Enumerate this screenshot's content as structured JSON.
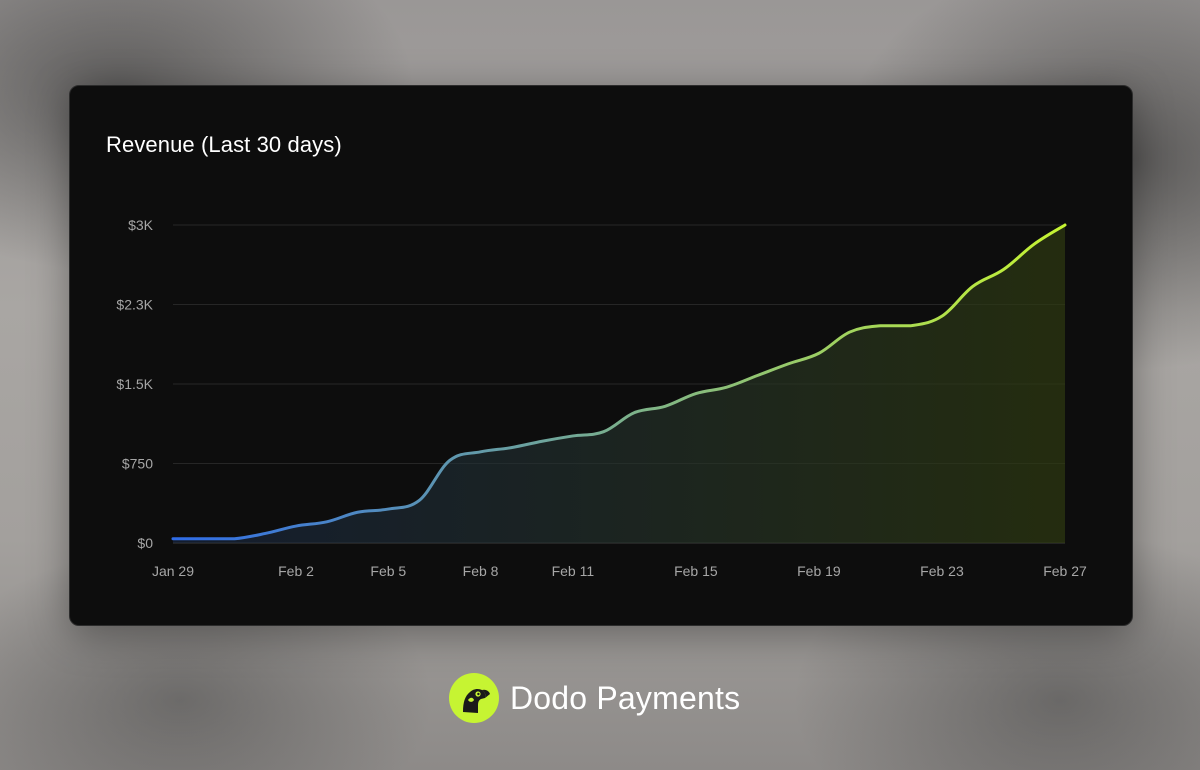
{
  "card": {
    "title": "Revenue (Last 30 days)"
  },
  "brand": {
    "name": "Dodo Payments",
    "logo_icon": "dodo-bird-icon",
    "logo_color": "#c6f432"
  },
  "chart_data": {
    "type": "area",
    "title": "Revenue (Last 30 days)",
    "xlabel": "",
    "ylabel": "",
    "x_ticks": [
      "Jan 29",
      "Feb 2",
      "Feb 5",
      "Feb 8",
      "Feb 11",
      "Feb 15",
      "Feb 19",
      "Feb 23",
      "Feb 27"
    ],
    "y_ticks": [
      "$0",
      "$750",
      "$1.5K",
      "$2.3K",
      "$3K"
    ],
    "ylim": [
      0,
      3000
    ],
    "grid": true,
    "legend": "none",
    "line_gradient": [
      "#2f6ce8",
      "#c6f432"
    ],
    "series": [
      {
        "x": [
          "Jan 29",
          "Jan 30",
          "Jan 31",
          "Feb 1",
          "Feb 2",
          "Feb 3",
          "Feb 4",
          "Feb 5",
          "Feb 6",
          "Feb 7",
          "Feb 8",
          "Feb 9",
          "Feb 10",
          "Feb 11",
          "Feb 12",
          "Feb 13",
          "Feb 14",
          "Feb 15",
          "Feb 16",
          "Feb 17",
          "Feb 18",
          "Feb 19",
          "Feb 20",
          "Feb 21",
          "Feb 22",
          "Feb 23",
          "Feb 24",
          "Feb 25",
          "Feb 26",
          "Feb 27"
        ],
        "values": [
          40,
          40,
          40,
          90,
          160,
          200,
          290,
          320,
          400,
          780,
          860,
          900,
          960,
          1010,
          1050,
          1230,
          1290,
          1410,
          1470,
          1580,
          1690,
          1790,
          1990,
          2050,
          2050,
          2140,
          2420,
          2580,
          2820,
          3000
        ]
      }
    ]
  }
}
